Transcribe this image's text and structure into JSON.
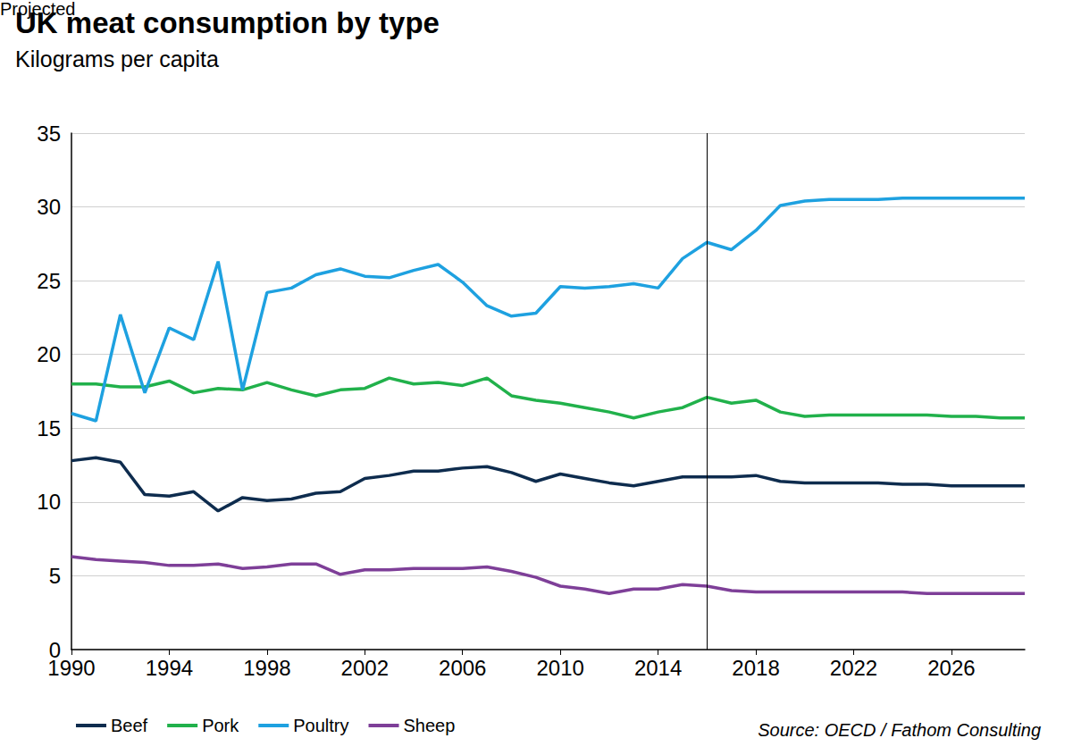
{
  "chart_data": {
    "type": "line",
    "title": "UK meat consumption by type",
    "subtitle": "Kilograms per capita",
    "source": "Source: OECD / Fathom Consulting",
    "x": [
      1990,
      1991,
      1992,
      1993,
      1994,
      1995,
      1996,
      1997,
      1998,
      1999,
      2000,
      2001,
      2002,
      2003,
      2004,
      2005,
      2006,
      2007,
      2008,
      2009,
      2010,
      2011,
      2012,
      2013,
      2014,
      2015,
      2016,
      2017,
      2018,
      2019,
      2020,
      2021,
      2022,
      2023,
      2024,
      2025,
      2026,
      2027,
      2028,
      2029
    ],
    "series": [
      {
        "name": "Beef",
        "color": "#0e2c4e",
        "values": [
          12.8,
          13.0,
          12.7,
          10.5,
          10.4,
          10.7,
          9.4,
          10.3,
          10.1,
          10.2,
          10.6,
          10.7,
          11.6,
          11.8,
          12.1,
          12.1,
          12.3,
          12.4,
          12.0,
          11.4,
          11.9,
          11.6,
          11.3,
          11.1,
          11.4,
          11.7,
          11.7,
          11.7,
          11.8,
          11.4,
          11.3,
          11.3,
          11.3,
          11.3,
          11.2,
          11.2,
          11.1,
          11.1,
          11.1,
          11.1
        ]
      },
      {
        "name": "Pork",
        "color": "#21b14b",
        "values": [
          18.0,
          18.0,
          17.8,
          17.8,
          18.2,
          17.4,
          17.7,
          17.6,
          18.1,
          17.6,
          17.2,
          17.6,
          17.7,
          18.4,
          18.0,
          18.1,
          17.9,
          18.4,
          17.2,
          16.9,
          16.7,
          16.4,
          16.1,
          15.7,
          16.1,
          16.4,
          17.1,
          16.7,
          16.9,
          16.1,
          15.8,
          15.9,
          15.9,
          15.9,
          15.9,
          15.9,
          15.8,
          15.8,
          15.7,
          15.7
        ]
      },
      {
        "name": "Poultry",
        "color": "#1ea1e0",
        "values": [
          16.0,
          15.5,
          22.7,
          17.4,
          21.8,
          21.0,
          26.3,
          17.6,
          24.2,
          24.5,
          25.4,
          25.8,
          25.3,
          25.2,
          25.7,
          26.1,
          24.9,
          23.3,
          22.6,
          22.8,
          24.6,
          24.5,
          24.6,
          24.8,
          24.5,
          26.5,
          27.6,
          27.1,
          28.4,
          30.1,
          30.4,
          30.5,
          30.5,
          30.5,
          30.6,
          30.6,
          30.6,
          30.6,
          30.6,
          30.6
        ]
      },
      {
        "name": "Sheep",
        "color": "#7e3f98",
        "values": [
          6.3,
          6.1,
          6.0,
          5.9,
          5.7,
          5.7,
          5.8,
          5.5,
          5.6,
          5.8,
          5.8,
          5.1,
          5.4,
          5.4,
          5.5,
          5.5,
          5.5,
          5.6,
          5.3,
          4.9,
          4.3,
          4.1,
          3.8,
          4.1,
          4.1,
          4.4,
          4.3,
          4.0,
          3.9,
          3.9,
          3.9,
          3.9,
          3.9,
          3.9,
          3.9,
          3.8,
          3.8,
          3.8,
          3.8,
          3.8
        ]
      }
    ],
    "xlim": [
      1990,
      2029
    ],
    "xticks": [
      1990,
      1994,
      1998,
      2002,
      2006,
      2010,
      2014,
      2018,
      2022,
      2026
    ],
    "ylim": [
      0,
      35
    ],
    "yticks": [
      0,
      5,
      10,
      15,
      20,
      25,
      30,
      35
    ],
    "grid": true,
    "legend": "bottom-left",
    "annotations": [
      {
        "x": 2016,
        "text": "Projected"
      }
    ]
  }
}
